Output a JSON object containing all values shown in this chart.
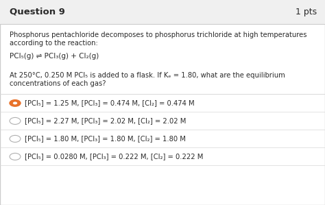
{
  "title": "Question 9",
  "pts": "1 pts",
  "header_bg": "#f0f0f0",
  "body_bg": "#ffffff",
  "border_color": "#cccccc",
  "question_text_line1": "Phosphorus pentachloride decomposes to phosphorus trichloride at high temperatures",
  "question_text_line2": "according to the reaction:",
  "reaction": "PCl₅(g) ⇌ PCl₃(g) + Cl₂(g)",
  "condition_line1": "At 250°C, 0.250 M PCl₅ is added to a flask. If Kₑ = 1.80, what are the equilibrium",
  "condition_line2": "concentrations of each gas?",
  "options": [
    "[PCl₅] = 1.25 M, [PCl₃] = 0.474 M, [Cl₂] = 0.474 M",
    "[PCl₅] = 2.27 M, [PCl₃] = 2.02 M, [Cl₂] = 2.02 M",
    "[PCl₅] = 1.80 M, [PCl₃] = 1.80 M, [Cl₂] = 1.80 M",
    "[PCl₅] = 0.0280 M, [PCl₃] = 0.222 M, [Cl₂] = 0.222 M"
  ],
  "selected_option": 0,
  "selected_color": "#e8722a",
  "unselected_color": "#b0b0b0",
  "text_color": "#2a2a2a",
  "divider_color": "#d8d8d8"
}
